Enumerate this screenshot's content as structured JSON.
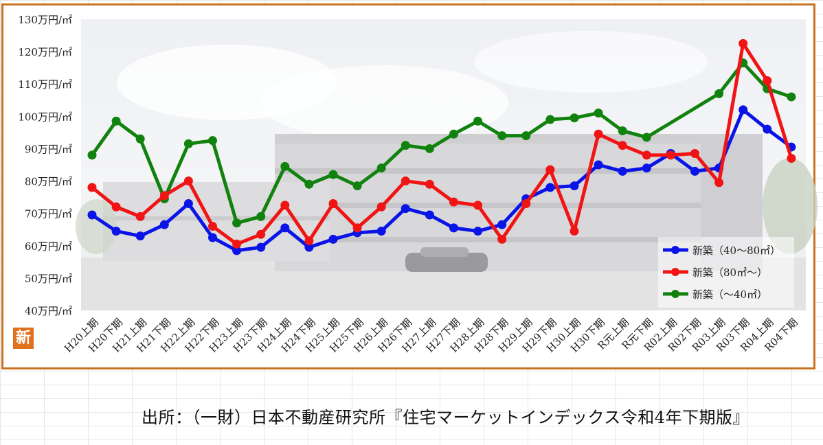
{
  "chart_data": {
    "type": "line",
    "categories": [
      "H20上期",
      "H20下期",
      "H21上期",
      "H21下期",
      "H22上期",
      "H22下期",
      "H23上期",
      "H23下期",
      "H24上期",
      "H24下期",
      "H25上期",
      "H25下期",
      "H26上期",
      "H26下期",
      "H27上期",
      "H27下期",
      "H28上期",
      "H28下期",
      "H29上期",
      "H29下期",
      "H30上期",
      "H30下期",
      "R元上期",
      "R元下期",
      "R02上期",
      "R02下期",
      "R03上期",
      "R03下期",
      "R04上期",
      "R04下期"
    ],
    "y_tick_labels": [
      "40万円/㎡",
      "50万円/㎡",
      "60万円/㎡",
      "70万円/㎡",
      "80万円/㎡",
      "90万円/㎡",
      "100万円/㎡",
      "110万円/㎡",
      "120万円/㎡",
      "130万円/㎡"
    ],
    "y_ticks": [
      40,
      50,
      60,
      70,
      80,
      90,
      100,
      110,
      120,
      130
    ],
    "ylim": [
      40,
      130
    ],
    "grid": false,
    "legend_position": "bottom-right",
    "series": [
      {
        "name": "新築（40～80㎡）",
        "color": "#0a14e6",
        "values": [
          69.5,
          64.5,
          63,
          66.5,
          73,
          62.5,
          58.5,
          59.5,
          65.5,
          59.5,
          62,
          64,
          64.5,
          71.5,
          69.5,
          65.5,
          64.5,
          66.5,
          74.5,
          78,
          78.5,
          85,
          83,
          84,
          88.5,
          83,
          84,
          102,
          96,
          90.5
        ]
      },
      {
        "name": "新築（80㎡～）",
        "color": "#f01414",
        "values": [
          78,
          72,
          69,
          75.5,
          80,
          66,
          60.5,
          63.5,
          72.5,
          61.5,
          73,
          65.5,
          72,
          80,
          79,
          73.5,
          72.5,
          62,
          73,
          83.5,
          64.5,
          94.5,
          91,
          88,
          88,
          88.5,
          79.5,
          122.5,
          111,
          87
        ]
      },
      {
        "name": "新築（～40㎡）",
        "color": "#12820f",
        "values": [
          88,
          98.5,
          93,
          74.5,
          91.5,
          92.5,
          67,
          69,
          84.5,
          79,
          82,
          78.5,
          84,
          91,
          90,
          94.5,
          98.5,
          94,
          94,
          99,
          99.5,
          101,
          95.5,
          93.5,
          null,
          null,
          107,
          116.5,
          108.5,
          106
        ]
      }
    ]
  },
  "source": {
    "text": "出所：（一財）日本不動産研究所『住宅マーケットインデックス令和4年下期版』"
  },
  "logo": {
    "text": "新"
  }
}
